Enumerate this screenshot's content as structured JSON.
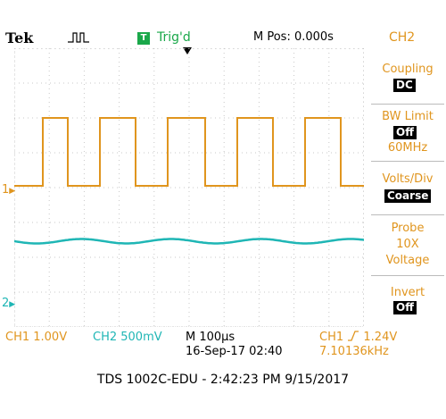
{
  "header": {
    "brand": "Tek",
    "trigger_badge": "T",
    "trigger_state": "Trig'd",
    "m_pos": "M Pos: 0.000s",
    "channel": "CH2"
  },
  "menu": {
    "coupling_label": "Coupling",
    "coupling_value": "DC",
    "bw_label": "BW Limit",
    "bw_value": "Off",
    "bw_freq": "60MHz",
    "volts_label": "Volts/Div",
    "volts_value": "Coarse",
    "probe_label": "Probe",
    "probe_value": "10X",
    "probe_unit": "Voltage",
    "invert_label": "Invert",
    "invert_value": "Off"
  },
  "markers": {
    "ch1": "1",
    "ch2": "2"
  },
  "status": {
    "ch1": "CH1  1.00V",
    "ch2": "CH2  500mV",
    "timebase": "M 100µs",
    "date": "16-Sep-17 02:40",
    "trig_source": "CH1",
    "trig_level": "1.24V",
    "frequency": "7.10136kHz"
  },
  "footer": "TDS 1002C-EDU - 2:42:23 PM   9/15/2017",
  "colors": {
    "ch1": "#e0951e",
    "ch2": "#1fb6b5",
    "trigger": "#1aa84a"
  }
}
